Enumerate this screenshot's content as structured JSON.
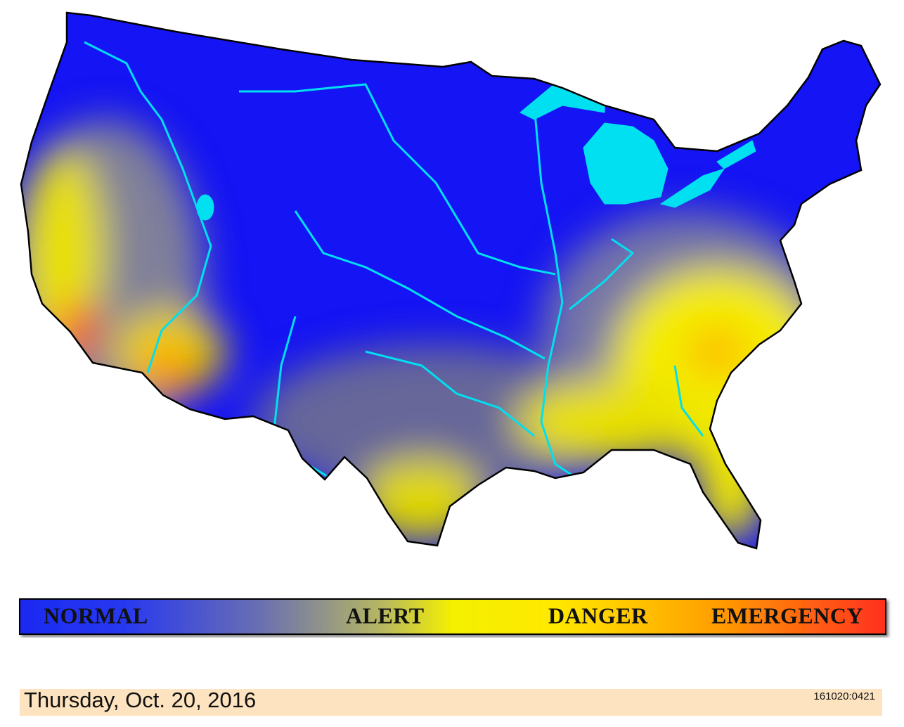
{
  "legend": {
    "labels": [
      "NORMAL",
      "ALERT",
      "DANGER",
      "EMERGENCY"
    ]
  },
  "footer": {
    "date": "Thursday, Oct. 20, 2016",
    "code": "161020:0421"
  }
}
